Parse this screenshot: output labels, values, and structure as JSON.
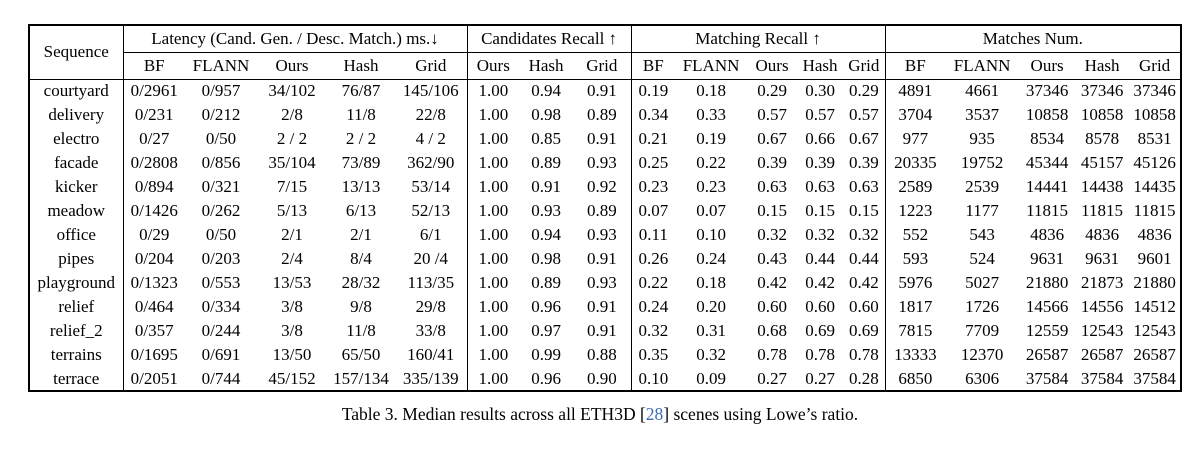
{
  "table": {
    "header": {
      "sequence_label": "Sequence",
      "groups": [
        {
          "label": "Latency (Cand. Gen. / Desc. Match.) ms.↓",
          "cols": [
            "BF",
            "FLANN",
            "Ours",
            "Hash",
            "Grid"
          ]
        },
        {
          "label": "Candidates Recall ↑",
          "cols": [
            "Ours",
            "Hash",
            "Grid"
          ]
        },
        {
          "label": "Matching Recall ↑",
          "cols": [
            "BF",
            "FLANN",
            "Ours",
            "Hash",
            "Grid"
          ]
        },
        {
          "label": "Matches Num.",
          "cols": [
            "BF",
            "FLANN",
            "Ours",
            "Hash",
            "Grid"
          ]
        }
      ]
    },
    "rows": [
      {
        "sequence": "courtyard",
        "cells": [
          "0/2961",
          "0/957",
          "34/102",
          "76/87",
          "145/106",
          "1.00",
          "0.94",
          "0.91",
          "0.19",
          "0.18",
          "0.29",
          "0.30",
          "0.29",
          "4891",
          "4661",
          "37346",
          "37346",
          "37346"
        ]
      },
      {
        "sequence": "delivery",
        "cells": [
          "0/231",
          "0/212",
          "2/8",
          "11/8",
          "22/8",
          "1.00",
          "0.98",
          "0.89",
          "0.34",
          "0.33",
          "0.57",
          "0.57",
          "0.57",
          "3704",
          "3537",
          "10858",
          "10858",
          "10858"
        ]
      },
      {
        "sequence": "electro",
        "cells": [
          "0/27",
          "0/50",
          "2 / 2",
          "2 / 2",
          "4 / 2",
          "1.00",
          "0.85",
          "0.91",
          "0.21",
          "0.19",
          "0.67",
          "0.66",
          "0.67",
          "977",
          "935",
          "8534",
          "8578",
          "8531"
        ]
      },
      {
        "sequence": "facade",
        "cells": [
          "0/2808",
          "0/856",
          "35/104",
          "73/89",
          "362/90",
          "1.00",
          "0.89",
          "0.93",
          "0.25",
          "0.22",
          "0.39",
          "0.39",
          "0.39",
          "20335",
          "19752",
          "45344",
          "45157",
          "45126"
        ]
      },
      {
        "sequence": "kicker",
        "cells": [
          "0/894",
          "0/321",
          "7/15",
          "13/13",
          "53/14",
          "1.00",
          "0.91",
          "0.92",
          "0.23",
          "0.23",
          "0.63",
          "0.63",
          "0.63",
          "2589",
          "2539",
          "14441",
          "14438",
          "14435"
        ]
      },
      {
        "sequence": "meadow",
        "cells": [
          "0/1426",
          "0/262",
          "5/13",
          "6/13",
          "52/13",
          "1.00",
          "0.93",
          "0.89",
          "0.07",
          "0.07",
          "0.15",
          "0.15",
          "0.15",
          "1223",
          "1177",
          "11815",
          "11815",
          "11815"
        ]
      },
      {
        "sequence": "office",
        "cells": [
          "0/29",
          "0/50",
          "2/1",
          "2/1",
          "6/1",
          "1.00",
          "0.94",
          "0.93",
          "0.11",
          "0.10",
          "0.32",
          "0.32",
          "0.32",
          "552",
          "543",
          "4836",
          "4836",
          "4836"
        ]
      },
      {
        "sequence": "pipes",
        "cells": [
          "0/204",
          "0/203",
          "2/4",
          "8/4",
          "20 /4",
          "1.00",
          "0.98",
          "0.91",
          "0.26",
          "0.24",
          "0.43",
          "0.44",
          "0.44",
          "593",
          "524",
          "9631",
          "9631",
          "9601"
        ]
      },
      {
        "sequence": "playground",
        "cells": [
          "0/1323",
          "0/553",
          "13/53",
          "28/32",
          "113/35",
          "1.00",
          "0.89",
          "0.93",
          "0.22",
          "0.18",
          "0.42",
          "0.42",
          "0.42",
          "5976",
          "5027",
          "21880",
          "21873",
          "21880"
        ]
      },
      {
        "sequence": "relief",
        "cells": [
          "0/464",
          "0/334",
          "3/8",
          "9/8",
          "29/8",
          "1.00",
          "0.96",
          "0.91",
          "0.24",
          "0.20",
          "0.60",
          "0.60",
          "0.60",
          "1817",
          "1726",
          "14566",
          "14556",
          "14512"
        ]
      },
      {
        "sequence": "relief_2",
        "cells": [
          "0/357",
          "0/244",
          "3/8",
          "11/8",
          "33/8",
          "1.00",
          "0.97",
          "0.91",
          "0.32",
          "0.31",
          "0.68",
          "0.69",
          "0.69",
          "7815",
          "7709",
          "12559",
          "12543",
          "12543"
        ]
      },
      {
        "sequence": "terrains",
        "cells": [
          "0/1695",
          "0/691",
          "13/50",
          "65/50",
          "160/41",
          "1.00",
          "0.99",
          "0.88",
          "0.35",
          "0.32",
          "0.78",
          "0.78",
          "0.78",
          "13333",
          "12370",
          "26587",
          "26587",
          "26587"
        ]
      },
      {
        "sequence": "terrace",
        "cells": [
          "0/2051",
          "0/744",
          "45/152",
          "157/134",
          "335/139",
          "1.00",
          "0.96",
          "0.90",
          "0.10",
          "0.09",
          "0.27",
          "0.27",
          "0.28",
          "6850",
          "6306",
          "37584",
          "37584",
          "37584"
        ]
      }
    ]
  },
  "caption": {
    "prefix": "Table 3. Median results across all ETH3D [",
    "citation": "28",
    "suffix": "] scenes using Lowe’s ratio."
  },
  "colors": {
    "citation_link": "#3b6db5",
    "text": "#000000",
    "background": "#ffffff"
  }
}
